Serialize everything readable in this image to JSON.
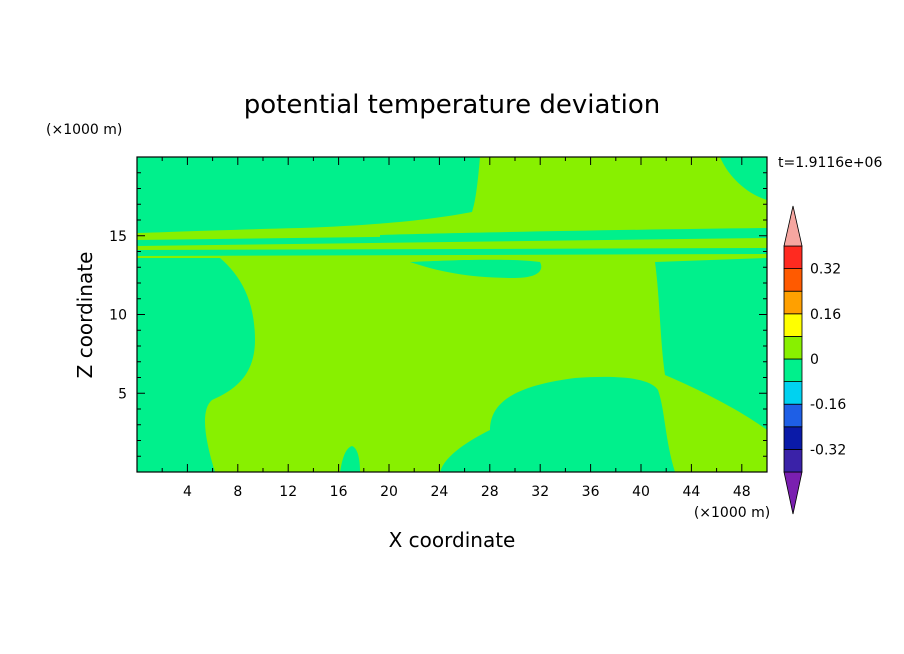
{
  "chart_data": {
    "type": "heatmap",
    "title": "potential temperature deviation",
    "xlabel": "X coordinate",
    "ylabel": "Z coordinate",
    "x_unit": "(×1000 m)",
    "y_unit": "(×1000 m)",
    "time_label": "t=1.9116e+06",
    "xlim": [
      0,
      50
    ],
    "ylim": [
      0,
      20
    ],
    "x_ticks": [
      4,
      8,
      12,
      16,
      20,
      24,
      28,
      32,
      36,
      40,
      44,
      48
    ],
    "y_ticks": [
      5,
      10,
      15
    ],
    "colorbar": {
      "levels": [
        -0.4,
        -0.32,
        -0.24,
        -0.16,
        -0.08,
        0,
        0.08,
        0.16,
        0.24,
        0.32,
        0.4
      ],
      "colors": [
        "#7a1fb0",
        "#3a22a8",
        "#0a1aa8",
        "#1e5fe6",
        "#00d2f0",
        "#00f08c",
        "#88f000",
        "#ffff00",
        "#ffa000",
        "#ff5a00",
        "#ff2a20",
        "#f6a6a0"
      ],
      "tick_labels": [
        "0.32",
        "0.16",
        "0",
        "-0.16",
        "-0.32"
      ],
      "tick_values": [
        0.32,
        0.16,
        0,
        -0.16,
        -0.32
      ]
    },
    "field_colors": {
      "negative_small": "#00f08c",
      "positive_small": "#88f000"
    }
  }
}
